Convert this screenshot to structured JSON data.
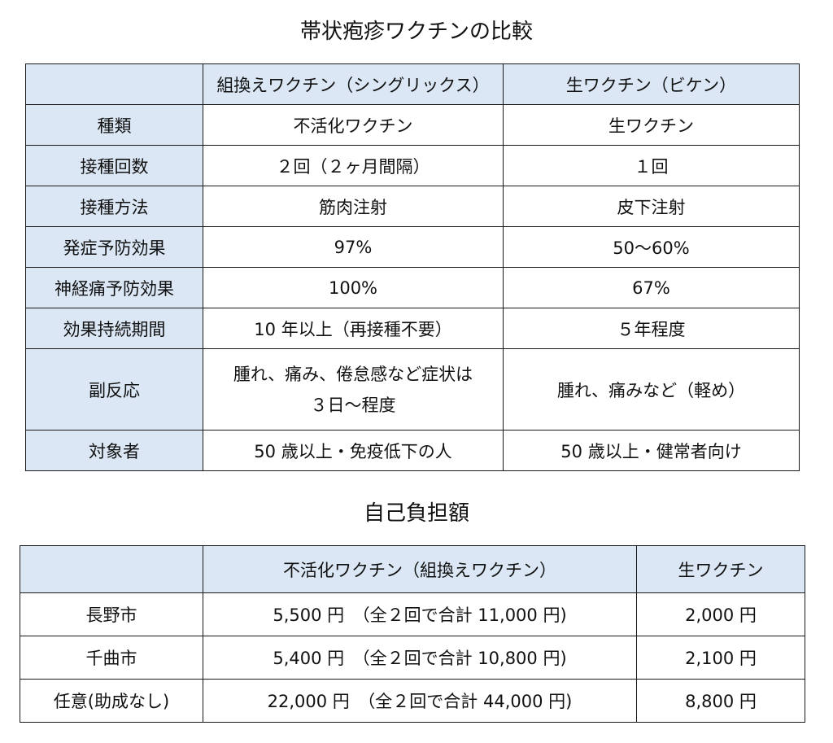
{
  "comparison": {
    "title": "帯状疱疹ワクチンの比較",
    "header": [
      "",
      "組換えワクチン（シングリックス）",
      "生ワクチン（ビケン）"
    ],
    "rows": [
      {
        "label": "種類",
        "a": "不活化ワクチン",
        "b": "生ワクチン"
      },
      {
        "label": "接種回数",
        "a": "２回（２ヶ月間隔）",
        "b": "１回"
      },
      {
        "label": "接種方法",
        "a": "筋肉注射",
        "b": "皮下注射"
      },
      {
        "label": "発症予防効果",
        "a": "97%",
        "b": "50～60%"
      },
      {
        "label": "神経痛予防効果",
        "a": "100%",
        "b": "67%"
      },
      {
        "label": "効果持続期間",
        "a": "10 年以上（再接種不要）",
        "b": "５年程度"
      },
      {
        "label": "副反応",
        "a_line1": "腫れ、痛み、倦怠感など症状は",
        "a_line2": "３日～程度",
        "b": "腫れ、痛みなど（軽め）"
      },
      {
        "label": "対象者",
        "a": "50 歳以上・免疫低下の人",
        "b": "50 歳以上・健常者向け"
      }
    ]
  },
  "cost": {
    "title": "自己負担額",
    "header": [
      "",
      "不活化ワクチン（組換えワクチン）",
      "生ワクチン"
    ],
    "rows": [
      {
        "city": "長野市",
        "inactivated": "5,500 円　（全２回で合計 11,000 円)",
        "live": "2,000 円"
      },
      {
        "city": "千曲市",
        "inactivated": "5,400 円　（全２回で合計 10,800 円)",
        "live": "2,100 円"
      },
      {
        "city": "任意(助成なし)",
        "inactivated": "22,000 円　（全２回で合計 44,000 円)",
        "live": "8,800 円"
      }
    ]
  },
  "colors": {
    "header_fill": "#dbe7f5",
    "border": "#1a1a1a"
  }
}
